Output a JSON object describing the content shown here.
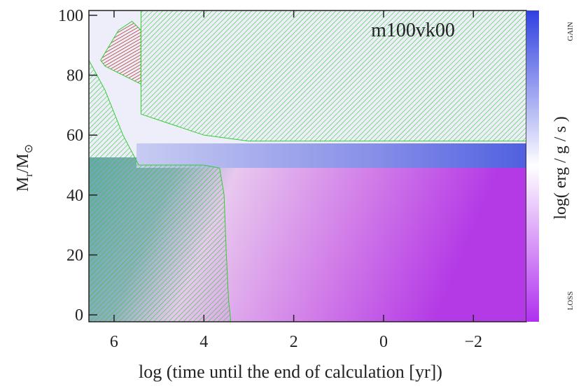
{
  "chart_data": {
    "type": "kippenhahn",
    "annotation": "m100vk00",
    "xlabel": "log (time until the end of calculation [yr])",
    "ylabel_parts": [
      "M",
      "r",
      "/M",
      "⊙"
    ],
    "colorbar_label": "log( erg / g / s )",
    "colorbar_top": "GAIN",
    "colorbar_bottom": "LOSS",
    "xlim": [
      6.56,
      -3.18
    ],
    "ylim": [
      -2.3,
      101.6
    ],
    "xticks": [
      6,
      4,
      2,
      0,
      {
        "value": -2,
        "label": "−2"
      }
    ],
    "yticks": [
      0,
      20,
      40,
      60,
      80,
      100
    ],
    "color": "#33cc33",
    "zones": [
      {
        "x": [
          5.4,
          -3.18,
          -3.18,
          3,
          4,
          5,
          5.4
        ],
        "y": [
          101.6,
          101.6,
          58,
          58,
          60,
          65,
          67
        ]
      },
      {
        "x": [
          6.56,
          6.56,
          6.2,
          5.8,
          5.45,
          5.3,
          4,
          3.65,
          3.55,
          3.5,
          3.45,
          3.4
        ],
        "y": [
          -2.3,
          85,
          75,
          60,
          50,
          50,
          50,
          49,
          40,
          20,
          5,
          -2.3
        ]
      },
      {
        "x": [
          6.3,
          5.9,
          5.6,
          5.4,
          5.4,
          5.8,
          6.2
        ],
        "y": [
          85,
          95,
          98,
          95,
          77,
          80,
          83
        ]
      }
    ]
  }
}
